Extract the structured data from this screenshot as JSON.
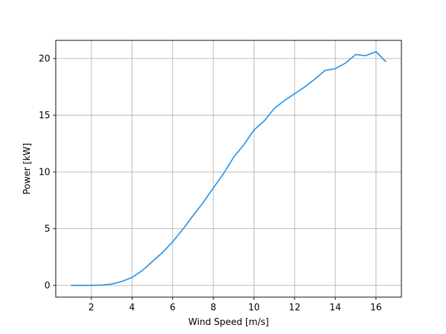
{
  "chart_data": {
    "type": "line",
    "title": "",
    "xlabel": "Wind Speed [m/s]",
    "ylabel": "Power [kW]",
    "xlim": [
      0.25,
      17.25
    ],
    "ylim": [
      -1.03,
      21.6
    ],
    "xticks": [
      2,
      4,
      6,
      8,
      10,
      12,
      14,
      16
    ],
    "yticks": [
      0,
      5,
      10,
      15,
      20
    ],
    "grid": true,
    "legend": "none",
    "line_color": "#2b95e8",
    "series": [
      {
        "x": [
          1.0,
          1.5,
          2.0,
          2.5,
          3.0,
          3.5,
          4.0,
          4.5,
          5.0,
          5.5,
          6.0,
          6.5,
          7.0,
          7.5,
          8.0,
          8.5,
          9.0,
          9.5,
          10.0,
          10.5,
          11.0,
          11.5,
          12.0,
          12.5,
          13.0,
          13.5,
          14.0,
          14.5,
          15.0,
          15.5,
          16.0,
          16.5
        ],
        "values": [
          0.0,
          0.0,
          0.0,
          0.03,
          0.12,
          0.35,
          0.7,
          1.3,
          2.1,
          2.9,
          3.85,
          4.95,
          6.15,
          7.3,
          8.6,
          9.85,
          11.3,
          12.4,
          13.7,
          14.5,
          15.6,
          16.3,
          16.9,
          17.5,
          18.2,
          18.95,
          19.1,
          19.6,
          20.35,
          20.25,
          20.6,
          19.7
        ]
      }
    ]
  }
}
